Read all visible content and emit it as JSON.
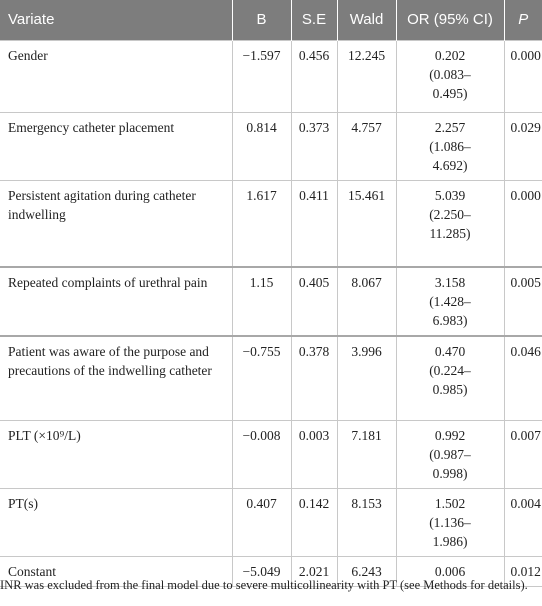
{
  "table": {
    "header": [
      "Variate",
      "B",
      "S.E",
      "Wald",
      "OR (95% CI)",
      "P"
    ],
    "rows": [
      {
        "variate": "Gender",
        "b": "−1.597",
        "se": "0.456",
        "wald": "12.245",
        "or": "0.202",
        "ci": "(0.083–0.495)",
        "p": "0.000"
      },
      {
        "variate": "Emergency catheter placement",
        "b": "0.814",
        "se": "0.373",
        "wald": "4.757",
        "or": "2.257",
        "ci": "(1.086–4.692)",
        "p": "0.029"
      },
      {
        "variate": "Persistent agitation during catheter indwelling",
        "b": "1.617",
        "se": "0.411",
        "wald": "15.461",
        "or": "5.039",
        "ci": "(2.250–11.285)",
        "p": "0.000"
      },
      {
        "variate": "Repeated complaints of urethral pain",
        "b": "1.15",
        "se": "0.405",
        "wald": "8.067",
        "or": "3.158",
        "ci": "(1.428–6.983)",
        "p": "0.005"
      },
      {
        "variate": "Patient was aware of the purpose and precautions of the indwelling catheter",
        "b": "−0.755",
        "se": "0.378",
        "wald": "3.996",
        "or": "0.470",
        "ci": "(0.224–0.985)",
        "p": "0.046"
      },
      {
        "variate": "PLT (×10⁹/L)",
        "b": "−0.008",
        "se": "0.003",
        "wald": "7.181",
        "or": "0.992",
        "ci": "(0.987–0.998)",
        "p": "0.007"
      },
      {
        "variate": "PT(s)",
        "b": "0.407",
        "se": "0.142",
        "wald": "8.153",
        "or": "1.502",
        "ci": "(1.136–1.986)",
        "p": "0.004"
      },
      {
        "variate": "Constant",
        "b": "−5.049",
        "se": "2.021",
        "wald": "6.243",
        "or": "0.006",
        "ci": null,
        "p": "0.012"
      }
    ],
    "footnote": "INR was excluded from the final model due to severe multicollinearity with PT (see Methods for details)."
  }
}
